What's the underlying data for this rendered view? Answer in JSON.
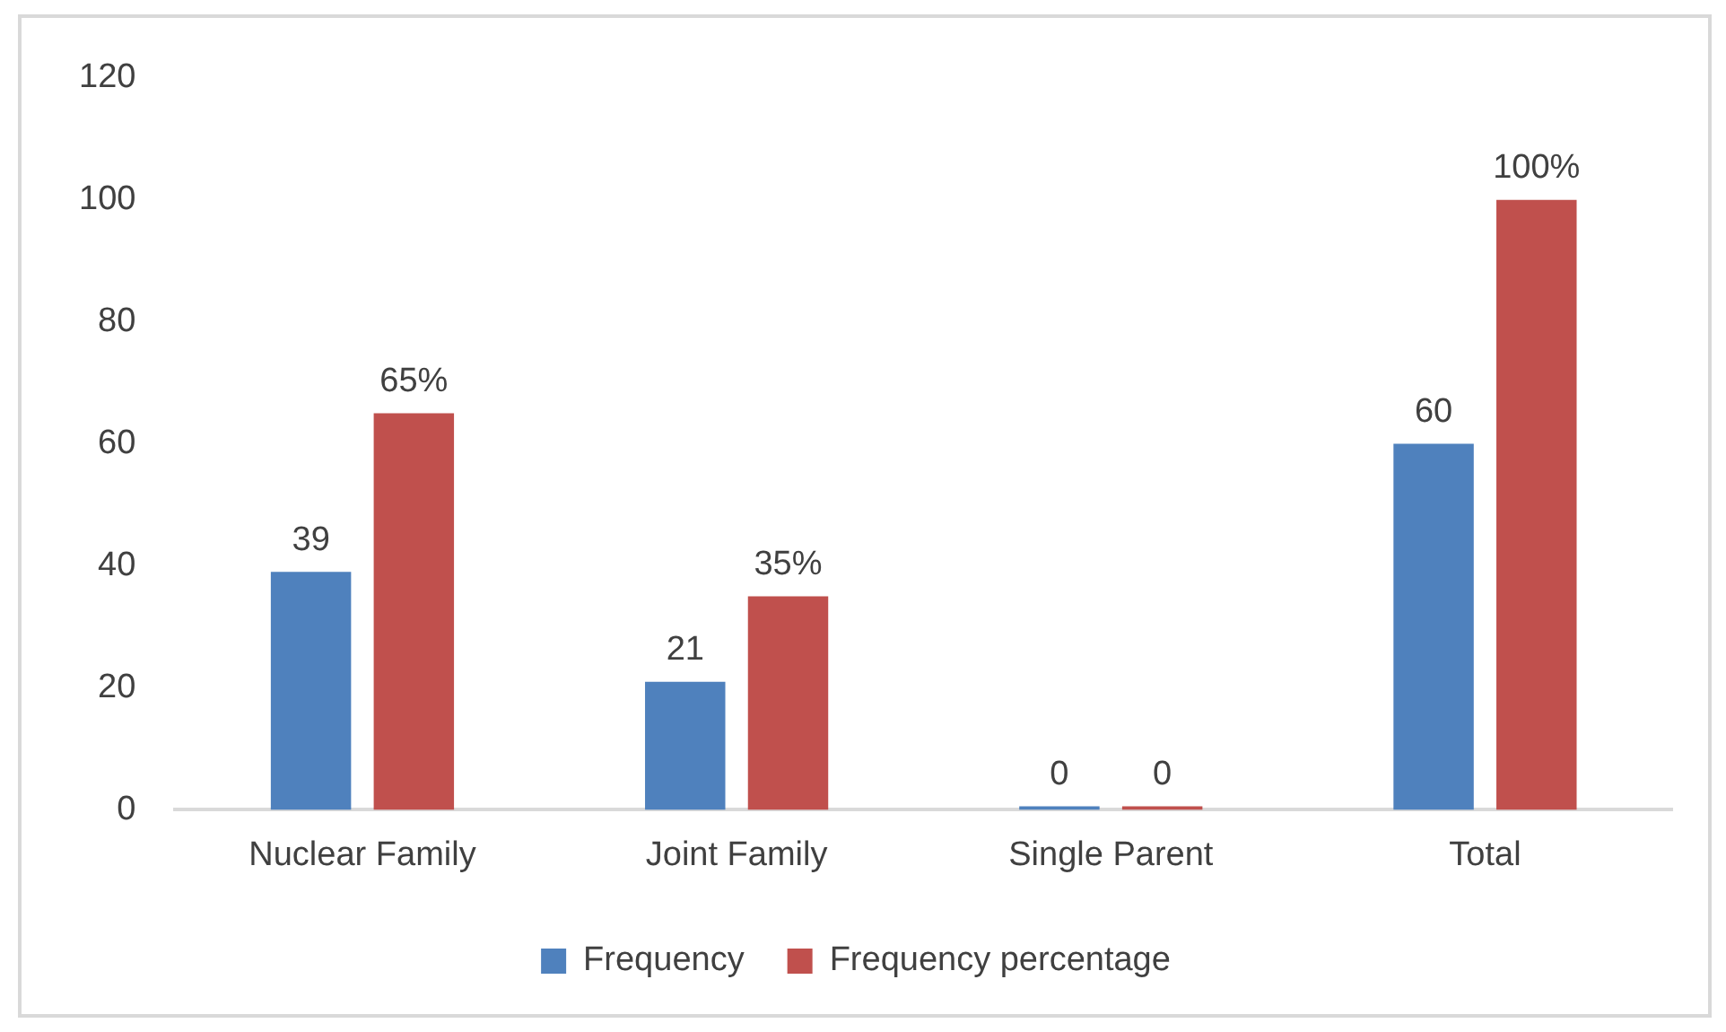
{
  "chart_data": {
    "type": "bar",
    "categories": [
      "Nuclear Family",
      "Joint Family",
      "Single Parent",
      "Total"
    ],
    "series": [
      {
        "name": "Frequency",
        "color": "#4f81bd",
        "values": [
          39,
          21,
          0,
          60
        ],
        "value_labels": [
          "39",
          "21",
          "0",
          "60"
        ]
      },
      {
        "name": "Frequency percentage",
        "color": "#c0504d",
        "values": [
          65,
          35,
          0,
          100
        ],
        "value_labels": [
          "65%",
          "35%",
          "0",
          "100%"
        ]
      }
    ],
    "ylim": [
      0,
      120
    ],
    "yticks": [
      0,
      20,
      40,
      60,
      80,
      100,
      120
    ],
    "grid": false,
    "legend": "bottom"
  }
}
